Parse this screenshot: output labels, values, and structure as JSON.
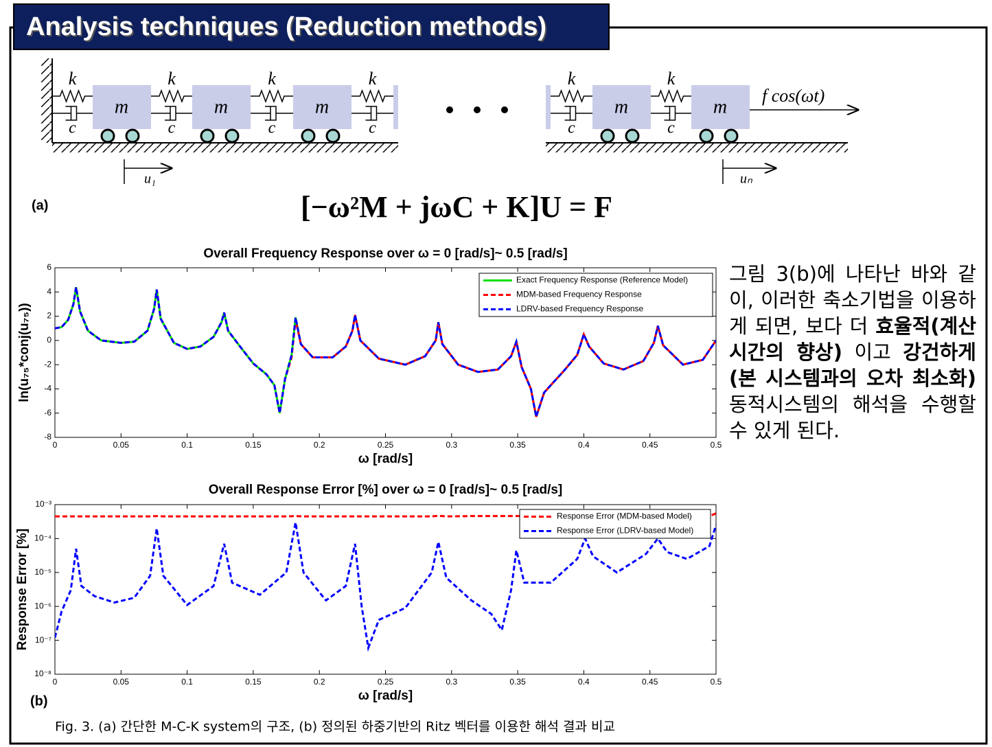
{
  "header": {
    "title": "Analysis techniques (Reduction methods)"
  },
  "diagram": {
    "panel_label": "(a)",
    "spring_label": "k",
    "damper_label": "c",
    "mass_label": "m",
    "displacement_first": "u₁",
    "displacement_last": "uₙ",
    "force_label": "f cos(ωt)",
    "equation": "[−ω²M + jωC + K]U = F"
  },
  "chart_data": [
    {
      "type": "line",
      "title": "Overall Frequency Response over ω = 0 [rad/s]~ 0.5 [rad/s]",
      "xlabel": "ω [rad/s]",
      "ylabel": "ln(u₇₅*conj(u₇₅))",
      "xlim": [
        0,
        0.5
      ],
      "xticks": [
        0,
        0.05,
        0.1,
        0.15,
        0.2,
        0.25,
        0.3,
        0.35,
        0.4,
        0.45,
        0.5
      ],
      "ylim": [
        -8,
        6
      ],
      "yticks": [
        -8,
        -6,
        -4,
        -2,
        0,
        2,
        4,
        6
      ],
      "legend": "upper right",
      "x": [
        0,
        0.005,
        0.01,
        0.014,
        0.016,
        0.019,
        0.025,
        0.035,
        0.05,
        0.06,
        0.07,
        0.075,
        0.077,
        0.08,
        0.09,
        0.1,
        0.11,
        0.12,
        0.126,
        0.128,
        0.131,
        0.14,
        0.15,
        0.16,
        0.166,
        0.17,
        0.174,
        0.179,
        0.182,
        0.186,
        0.195,
        0.21,
        0.22,
        0.225,
        0.227,
        0.231,
        0.245,
        0.265,
        0.28,
        0.288,
        0.29,
        0.293,
        0.305,
        0.32,
        0.335,
        0.345,
        0.349,
        0.353,
        0.36,
        0.364,
        0.37,
        0.385,
        0.395,
        0.4,
        0.404,
        0.415,
        0.43,
        0.445,
        0.453,
        0.456,
        0.46,
        0.475,
        0.49,
        0.5
      ],
      "series": [
        {
          "name": "Exact Frequency Response (Reference Model)",
          "color": "#00e000",
          "style": "solid",
          "values": [
            1.0,
            1.1,
            1.7,
            3.0,
            4.4,
            2.4,
            0.8,
            0,
            -0.2,
            -0.1,
            0.8,
            2.6,
            4.2,
            1.8,
            -0.2,
            -0.7,
            -0.5,
            0.3,
            1.5,
            2.3,
            0.8,
            -0.5,
            -1.9,
            -2.8,
            -3.7,
            -6.0,
            -3.2,
            -1.2,
            1.9,
            -0.3,
            -1.4,
            -1.4,
            -0.5,
            0.8,
            2.1,
            0,
            -1.5,
            -2.0,
            -1.3,
            0,
            1.5,
            -0.3,
            -2.0,
            -2.6,
            -2.4,
            -1.3,
            -0.1,
            -2.2,
            -4.0,
            -6.3,
            -4.3,
            -2.5,
            -1.2,
            0.5,
            -0.5,
            -1.9,
            -2.4,
            -1.7,
            -0.2,
            1.2,
            -0.4,
            -2.0,
            -1.6,
            0
          ]
        },
        {
          "name": "MDM-based Frequency Response",
          "color": "#ff0000",
          "style": "dashed",
          "values": [
            1.0,
            1.1,
            1.7,
            3.0,
            4.4,
            2.4,
            0.8,
            0,
            -0.2,
            -0.1,
            0.8,
            2.6,
            4.2,
            1.8,
            -0.2,
            -0.7,
            -0.5,
            0.3,
            1.5,
            2.3,
            0.8,
            -0.5,
            -1.9,
            -2.8,
            -3.7,
            -6.0,
            -3.2,
            -1.4,
            1.7,
            -0.3,
            -1.4,
            -1.4,
            -0.5,
            0.8,
            2.1,
            0,
            -1.5,
            -2.0,
            -1.3,
            0,
            1.5,
            -0.3,
            -2.0,
            -2.6,
            -2.4,
            -1.3,
            -0.1,
            -2.2,
            -4.0,
            -6.3,
            -4.3,
            -2.5,
            -1.2,
            0.5,
            -0.5,
            -1.9,
            -2.4,
            -1.7,
            -0.2,
            1.2,
            -0.4,
            -2.0,
            -1.6,
            0
          ]
        },
        {
          "name": "LDRV-based Frequency Response",
          "color": "#0000ff",
          "style": "dashed",
          "values": [
            1.0,
            1.1,
            1.7,
            3.0,
            4.4,
            2.4,
            0.8,
            0,
            -0.2,
            -0.1,
            0.8,
            2.6,
            4.2,
            1.8,
            -0.2,
            -0.7,
            -0.5,
            0.3,
            1.5,
            2.3,
            0.8,
            -0.5,
            -1.9,
            -2.8,
            -3.7,
            -6.0,
            -3.2,
            -1.2,
            1.9,
            -0.3,
            -1.4,
            -1.4,
            -0.5,
            0.8,
            2.1,
            0,
            -1.5,
            -2.0,
            -1.3,
            0,
            1.5,
            -0.3,
            -2.0,
            -2.6,
            -2.4,
            -1.3,
            -0.1,
            -2.2,
            -4.0,
            -6.3,
            -4.3,
            -2.5,
            -1.2,
            0.5,
            -0.5,
            -1.9,
            -2.4,
            -1.7,
            -0.2,
            1.2,
            -0.4,
            -2.0,
            -1.6,
            0
          ]
        }
      ]
    },
    {
      "type": "line",
      "title": "Overall Response Error [%] over ω = 0 [rad/s]~ 0.5 [rad/s]",
      "xlabel": "ω [rad/s]",
      "ylabel": "Response Error [%]",
      "panel_label": "(b)",
      "log_y": true,
      "xlim": [
        0,
        0.5
      ],
      "xticks": [
        0,
        0.05,
        0.1,
        0.15,
        0.2,
        0.25,
        0.3,
        0.35,
        0.4,
        0.45,
        0.5
      ],
      "ylim": [
        1e-08,
        0.001
      ],
      "yticks": [
        {
          "value": 1e-08,
          "label": "10⁻⁸"
        },
        {
          "value": 1e-07,
          "label": "10⁻⁷"
        },
        {
          "value": 1e-06,
          "label": "10⁻⁶"
        },
        {
          "value": 1e-05,
          "label": "10⁻⁵"
        },
        {
          "value": 0.0001,
          "label": "10⁻⁴"
        },
        {
          "value": 0.001,
          "label": "10⁻³"
        }
      ],
      "legend": "upper right",
      "x": [
        0,
        0.005,
        0.012,
        0.016,
        0.02,
        0.03,
        0.045,
        0.06,
        0.072,
        0.077,
        0.082,
        0.1,
        0.12,
        0.128,
        0.134,
        0.155,
        0.175,
        0.182,
        0.188,
        0.205,
        0.22,
        0.227,
        0.232,
        0.237,
        0.245,
        0.265,
        0.285,
        0.29,
        0.296,
        0.315,
        0.33,
        0.338,
        0.345,
        0.349,
        0.355,
        0.375,
        0.395,
        0.401,
        0.407,
        0.425,
        0.447,
        0.456,
        0.463,
        0.478,
        0.495,
        0.5
      ],
      "series": [
        {
          "name": "Response Error (MDM-based Model)",
          "color": "#ff0000",
          "style": "dashed",
          "values": [
            0.00045,
            0.00045,
            0.00045,
            0.00045,
            0.00045,
            0.00045,
            0.00045,
            0.00045,
            0.00045,
            0.00046,
            0.00045,
            0.00045,
            0.00045,
            0.00045,
            0.00045,
            0.00045,
            0.00045,
            0.00046,
            0.00045,
            0.00045,
            0.00045,
            0.00045,
            0.00045,
            0.00045,
            0.00045,
            0.00045,
            0.00045,
            0.00047,
            0.00045,
            0.00046,
            0.00046,
            0.00046,
            0.00046,
            0.00046,
            0.00046,
            0.00046,
            0.00046,
            0.00046,
            0.00046,
            0.00046,
            0.00046,
            0.00046,
            0.00046,
            0.00046,
            0.00046,
            0.00055
          ]
        },
        {
          "name": "Response Error (LDRV-based Model)",
          "color": "#0000ff",
          "style": "dashed",
          "values": [
            1.2e-07,
            7e-07,
            3e-06,
            5e-05,
            4e-06,
            2e-06,
            1.3e-06,
            1.8e-06,
            8e-06,
            0.0002,
            8e-06,
            1.1e-06,
            4e-06,
            7e-05,
            5e-06,
            2.2e-06,
            1e-05,
            0.0003,
            1e-05,
            1.5e-06,
            4e-06,
            7e-05,
            1e-06,
            6e-08,
            4e-07,
            9e-07,
            1e-05,
            8e-05,
            7e-06,
            1.5e-06,
            6e-07,
            2e-07,
            3e-06,
            4.5e-05,
            5e-06,
            5e-06,
            2.5e-05,
            0.0001,
            3e-05,
            1e-05,
            3.5e-05,
            0.0001,
            4e-05,
            2.5e-05,
            6e-05,
            0.00025
          ]
        }
      ]
    }
  ],
  "description": [
    {
      "text": "그림 3(b)에 나타난 바와 같이, 이러한 축소기법을 이용하게 되면, 보다 더 ",
      "bold": false
    },
    {
      "text": "효율적(계산시간의 향상)",
      "bold": true
    },
    {
      "text": " 이고 ",
      "bold": false
    },
    {
      "text": "강건하게(본 시스템과의 오차 최소화)",
      "bold": true
    },
    {
      "text": " 동적시스템의 해석을 수행할 수 있게 된다.",
      "bold": false
    }
  ],
  "caption": "Fig. 3. (a) 간단한 M-C-K system의 구조, (b) 정의된 하중기반의 Ritz 벡터를 이용한 해석 결과 비교"
}
